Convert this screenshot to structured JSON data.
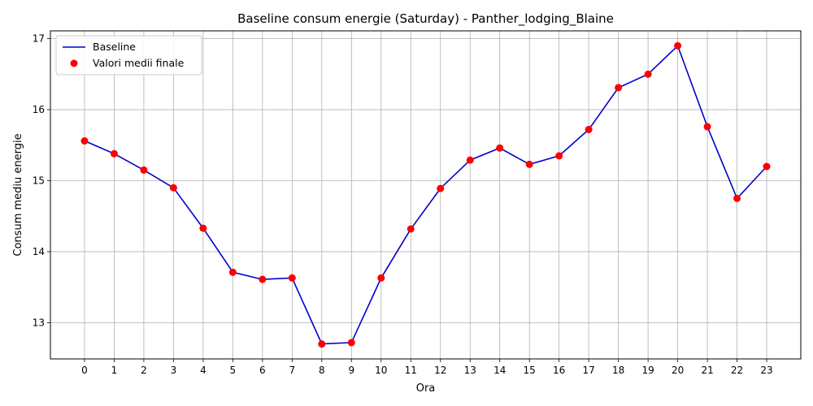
{
  "chart_data": {
    "type": "line",
    "title": "Baseline consum energie (Saturday) - Panther_lodging_Blaine",
    "xlabel": "Ora",
    "ylabel": "Consum mediu energie",
    "x": [
      0,
      1,
      2,
      3,
      4,
      5,
      6,
      7,
      8,
      9,
      10,
      11,
      12,
      13,
      14,
      15,
      16,
      17,
      18,
      19,
      20,
      21,
      22,
      23
    ],
    "series": [
      {
        "name": "Baseline",
        "kind": "line",
        "color": "#0000cc",
        "values": [
          15.56,
          15.38,
          15.15,
          14.9,
          14.33,
          13.71,
          13.61,
          13.63,
          12.7,
          12.72,
          13.63,
          14.32,
          14.89,
          15.29,
          15.46,
          15.23,
          15.35,
          15.72,
          16.31,
          16.5,
          16.9,
          15.76,
          14.75,
          15.2
        ]
      },
      {
        "name": "Valori medii finale",
        "kind": "scatter",
        "color": "#ff0000",
        "values": [
          15.56,
          15.38,
          15.15,
          14.9,
          14.33,
          13.71,
          13.61,
          13.63,
          12.7,
          12.72,
          13.63,
          14.32,
          14.89,
          15.29,
          15.46,
          15.23,
          15.35,
          15.72,
          16.31,
          16.5,
          16.9,
          15.76,
          14.75,
          15.2
        ]
      }
    ],
    "xticks": [
      "0",
      "1",
      "2",
      "3",
      "4",
      "5",
      "6",
      "7",
      "8",
      "9",
      "10",
      "11",
      "12",
      "13",
      "14",
      "15",
      "16",
      "17",
      "18",
      "19",
      "20",
      "21",
      "22",
      "23"
    ],
    "yticks": [
      13,
      14,
      15,
      16,
      17
    ],
    "xlim": [
      -1.15,
      24.15
    ],
    "ylim": [
      12.49,
      17.11
    ],
    "grid": true,
    "legend": "upper-left"
  }
}
